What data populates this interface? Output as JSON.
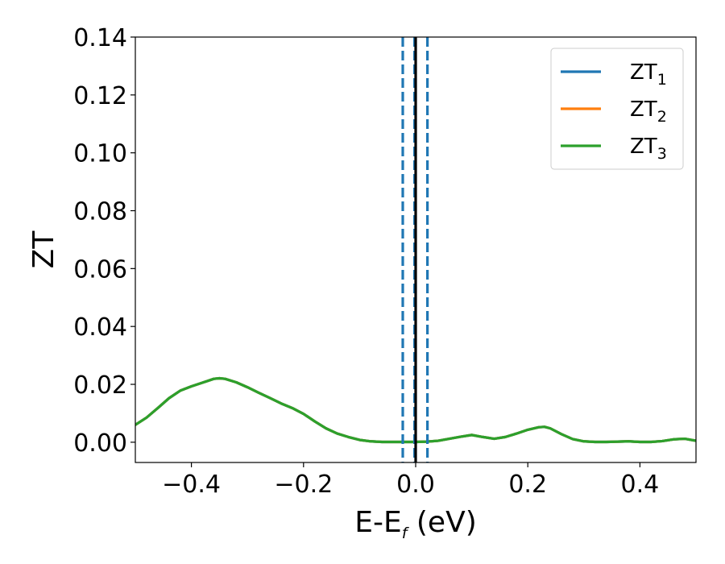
{
  "chart_data": {
    "type": "line",
    "xlabel": "E-E",
    "xlabel_subscript": "f",
    "xlabel_unit": " (eV)",
    "ylabel": "ZT",
    "xlim": [
      -0.5,
      0.5
    ],
    "ylim": [
      -0.007,
      0.14
    ],
    "x_ticks": [
      -0.4,
      -0.2,
      0.0,
      0.2,
      0.4
    ],
    "x_tick_labels": [
      "−0.4",
      "−0.2",
      "0.0",
      "0.2",
      "0.4"
    ],
    "y_ticks": [
      0.0,
      0.02,
      0.04,
      0.06,
      0.08,
      0.1,
      0.12,
      0.14
    ],
    "y_tick_labels": [
      "0.00",
      "0.02",
      "0.04",
      "0.06",
      "0.08",
      "0.10",
      "0.12",
      "0.14"
    ],
    "grid": false,
    "legend_position": "top-right",
    "x": [
      -0.5,
      -0.48,
      -0.46,
      -0.44,
      -0.42,
      -0.4,
      -0.38,
      -0.36,
      -0.35,
      -0.34,
      -0.32,
      -0.3,
      -0.28,
      -0.26,
      -0.24,
      -0.22,
      -0.2,
      -0.18,
      -0.16,
      -0.14,
      -0.12,
      -0.1,
      -0.08,
      -0.06,
      -0.04,
      -0.02,
      0.0,
      0.02,
      0.04,
      0.06,
      0.08,
      0.1,
      0.12,
      0.14,
      0.16,
      0.18,
      0.2,
      0.22,
      0.23,
      0.24,
      0.26,
      0.28,
      0.3,
      0.32,
      0.34,
      0.36,
      0.38,
      0.4,
      0.42,
      0.44,
      0.46,
      0.48,
      0.5
    ],
    "series": [
      {
        "name": "ZT",
        "name_subscript": "1",
        "color": "#1f77b4",
        "values": [
          0.006,
          0.0085,
          0.0118,
          0.0152,
          0.0178,
          0.0193,
          0.0206,
          0.0219,
          0.0221,
          0.0219,
          0.0207,
          0.019,
          0.0171,
          0.0153,
          0.0134,
          0.0118,
          0.0098,
          0.0072,
          0.0048,
          0.003,
          0.0018,
          0.0008,
          0.0003,
          0.0001,
          0.0001,
          0.0001,
          0.0001,
          0.0002,
          0.0005,
          0.0012,
          0.0019,
          0.0025,
          0.0018,
          0.0012,
          0.0018,
          0.003,
          0.0043,
          0.0052,
          0.0053,
          0.0048,
          0.0028,
          0.0011,
          0.0003,
          0.0001,
          0.0001,
          0.0002,
          0.0003,
          0.0001,
          0.0001,
          0.0004,
          0.001,
          0.0012,
          0.0005
        ]
      },
      {
        "name": "ZT",
        "name_subscript": "2",
        "color": "#ff7f0e",
        "values": [
          0.006,
          0.0085,
          0.0118,
          0.0152,
          0.0178,
          0.0193,
          0.0206,
          0.0219,
          0.0221,
          0.0219,
          0.0207,
          0.019,
          0.0171,
          0.0153,
          0.0134,
          0.0118,
          0.0098,
          0.0072,
          0.0048,
          0.003,
          0.0018,
          0.0008,
          0.0003,
          0.0001,
          0.0001,
          0.0001,
          0.0001,
          0.0002,
          0.0005,
          0.0012,
          0.0019,
          0.0025,
          0.0018,
          0.0012,
          0.0018,
          0.003,
          0.0043,
          0.0052,
          0.0053,
          0.0048,
          0.0028,
          0.0011,
          0.0003,
          0.0001,
          0.0001,
          0.0002,
          0.0003,
          0.0001,
          0.0001,
          0.0004,
          0.001,
          0.0012,
          0.0005
        ]
      },
      {
        "name": "ZT",
        "name_subscript": "3",
        "color": "#2ca02c",
        "values": [
          0.006,
          0.0085,
          0.0118,
          0.0152,
          0.0178,
          0.0193,
          0.0206,
          0.0219,
          0.0221,
          0.0219,
          0.0207,
          0.019,
          0.0171,
          0.0153,
          0.0134,
          0.0118,
          0.0098,
          0.0072,
          0.0048,
          0.003,
          0.0018,
          0.0008,
          0.0003,
          0.0001,
          0.0001,
          0.0001,
          0.0001,
          0.0002,
          0.0005,
          0.0012,
          0.0019,
          0.0025,
          0.0018,
          0.0012,
          0.0018,
          0.003,
          0.0043,
          0.0052,
          0.0053,
          0.0048,
          0.0028,
          0.0011,
          0.0003,
          0.0001,
          0.0001,
          0.0002,
          0.0003,
          0.0001,
          0.0001,
          0.0004,
          0.001,
          0.0012,
          0.0005
        ]
      }
    ],
    "vertical_lines": [
      {
        "x": -0.023,
        "style": "dashed",
        "color": "#1f77b4"
      },
      {
        "x": -0.002,
        "style": "dashed",
        "color": "#1f77b4"
      },
      {
        "x": 0.021,
        "style": "dashed",
        "color": "#1f77b4"
      },
      {
        "x": 0.0,
        "style": "solid",
        "color": "#000000"
      }
    ]
  }
}
